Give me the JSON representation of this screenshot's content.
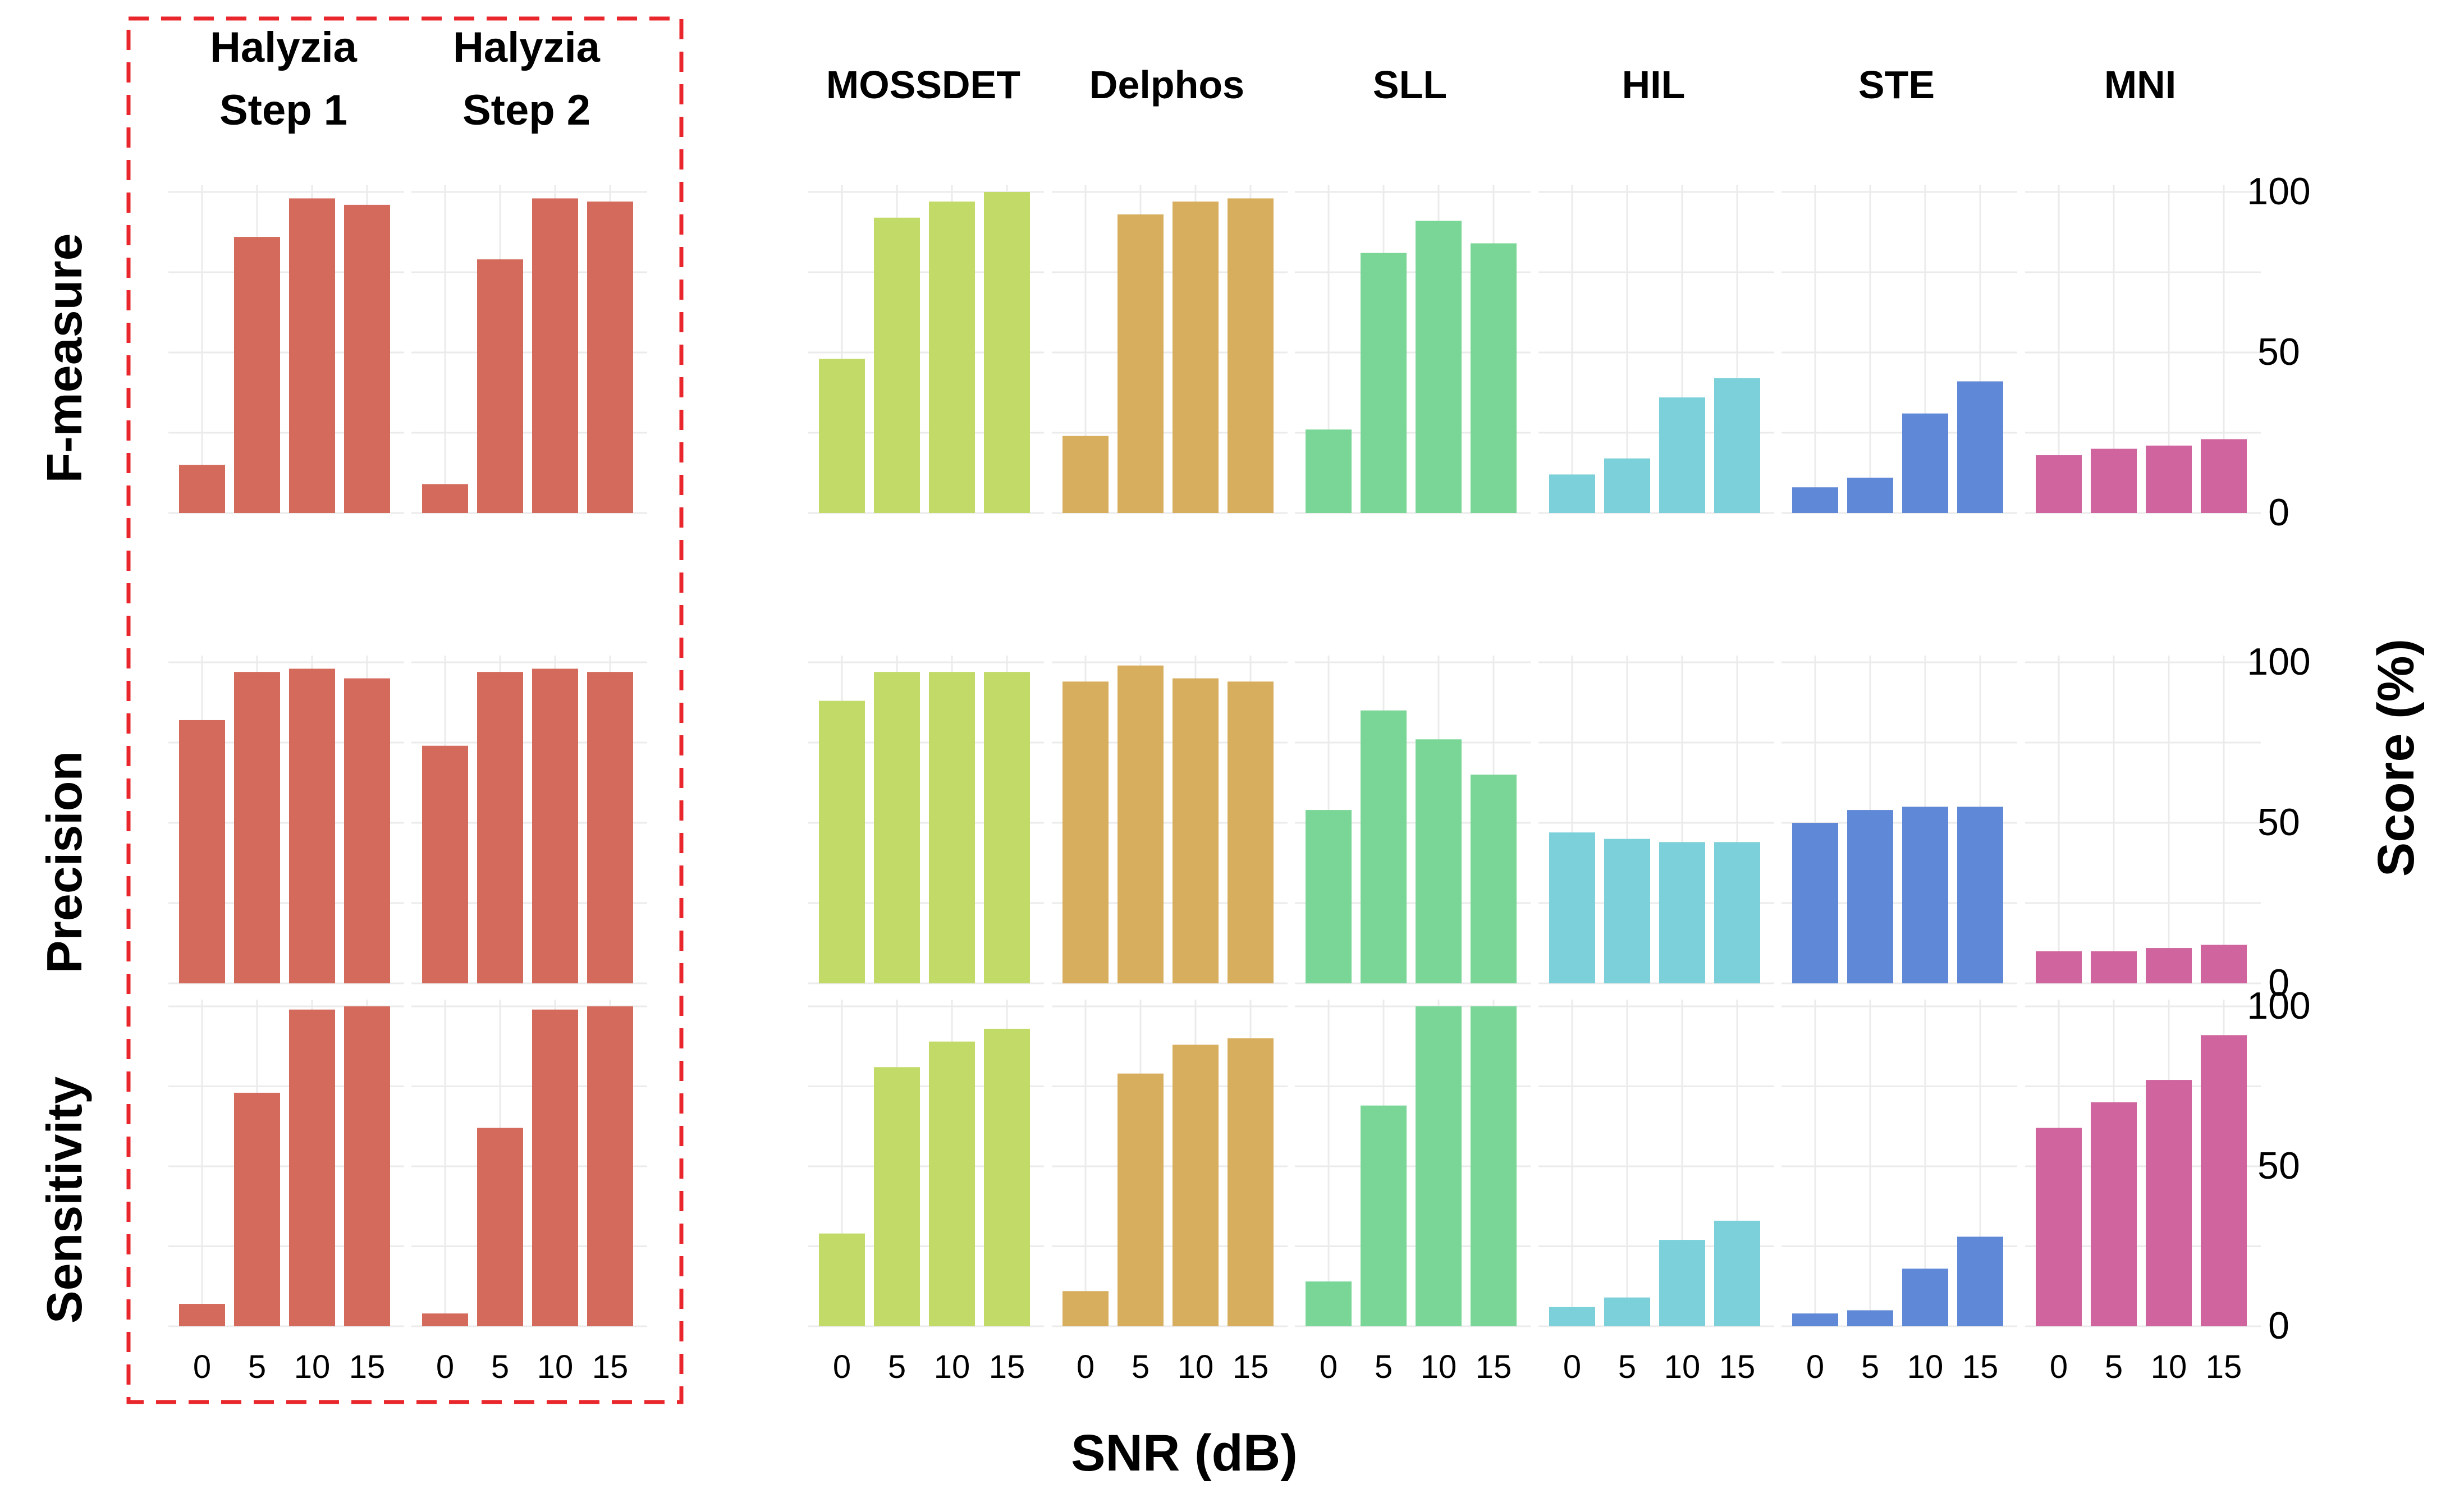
{
  "chart_data": {
    "type": "bar",
    "layout": "facet-grid",
    "xlabel": "SNR (dB)",
    "ylabel": "Score (%)",
    "categories": [
      "0",
      "5",
      "10",
      "15"
    ],
    "ylim": [
      0,
      100
    ],
    "yticks": [
      0,
      50,
      100
    ],
    "grid": true,
    "legend": "none",
    "highlight_box": {
      "around": [
        "Halyzia Step 1",
        "Halyzia Step 2"
      ],
      "style": "red-dashed"
    },
    "rows": [
      "F-measure",
      "Precision",
      "Sensitivity"
    ],
    "methods": [
      {
        "name": "Halyzia Step 1",
        "title_lines": [
          "Halyzia",
          "Step 1"
        ],
        "color": "#D46A5C",
        "F-measure": [
          15,
          86,
          98,
          96
        ],
        "Precision": [
          82,
          97,
          98,
          95
        ],
        "Sensitivity": [
          7,
          73,
          99,
          100
        ]
      },
      {
        "name": "Halyzia Step 2",
        "title_lines": [
          "Halyzia",
          "Step 2"
        ],
        "color": "#D46A5C",
        "F-measure": [
          9,
          79,
          98,
          97
        ],
        "Precision": [
          74,
          97,
          98,
          97
        ],
        "Sensitivity": [
          4,
          62,
          99,
          100
        ]
      },
      {
        "name": "MOSSDET",
        "title_lines": [
          "MOSSDET"
        ],
        "color": "#C2DA68",
        "F-measure": [
          48,
          92,
          97,
          100
        ],
        "Precision": [
          88,
          97,
          97,
          97
        ],
        "Sensitivity": [
          29,
          81,
          89,
          93
        ]
      },
      {
        "name": "Delphos",
        "title_lines": [
          "Delphos"
        ],
        "color": "#D7AE5E",
        "F-measure": [
          24,
          93,
          97,
          98
        ],
        "Precision": [
          94,
          99,
          95,
          94
        ],
        "Sensitivity": [
          11,
          79,
          88,
          90
        ]
      },
      {
        "name": "SLL",
        "title_lines": [
          "SLL"
        ],
        "color": "#7AD697",
        "F-measure": [
          26,
          81,
          91,
          84
        ],
        "Precision": [
          54,
          85,
          76,
          65
        ],
        "Sensitivity": [
          14,
          69,
          100,
          100
        ]
      },
      {
        "name": "HIL",
        "title_lines": [
          "HIL"
        ],
        "color": "#7BD0D9",
        "F-measure": [
          12,
          17,
          36,
          42
        ],
        "Precision": [
          47,
          45,
          44,
          44
        ],
        "Sensitivity": [
          6,
          9,
          27,
          33
        ]
      },
      {
        "name": "STE",
        "title_lines": [
          "STE"
        ],
        "color": "#5F88D6",
        "F-measure": [
          8,
          11,
          31,
          41
        ],
        "Precision": [
          50,
          54,
          55,
          55
        ],
        "Sensitivity": [
          4,
          5,
          18,
          28
        ]
      },
      {
        "name": "MNI",
        "title_lines": [
          "MNI"
        ],
        "color": "#CF649F",
        "F-measure": [
          18,
          20,
          21,
          23
        ],
        "Precision": [
          10,
          10,
          11,
          12
        ],
        "Sensitivity": [
          62,
          70,
          77,
          91
        ]
      }
    ]
  }
}
